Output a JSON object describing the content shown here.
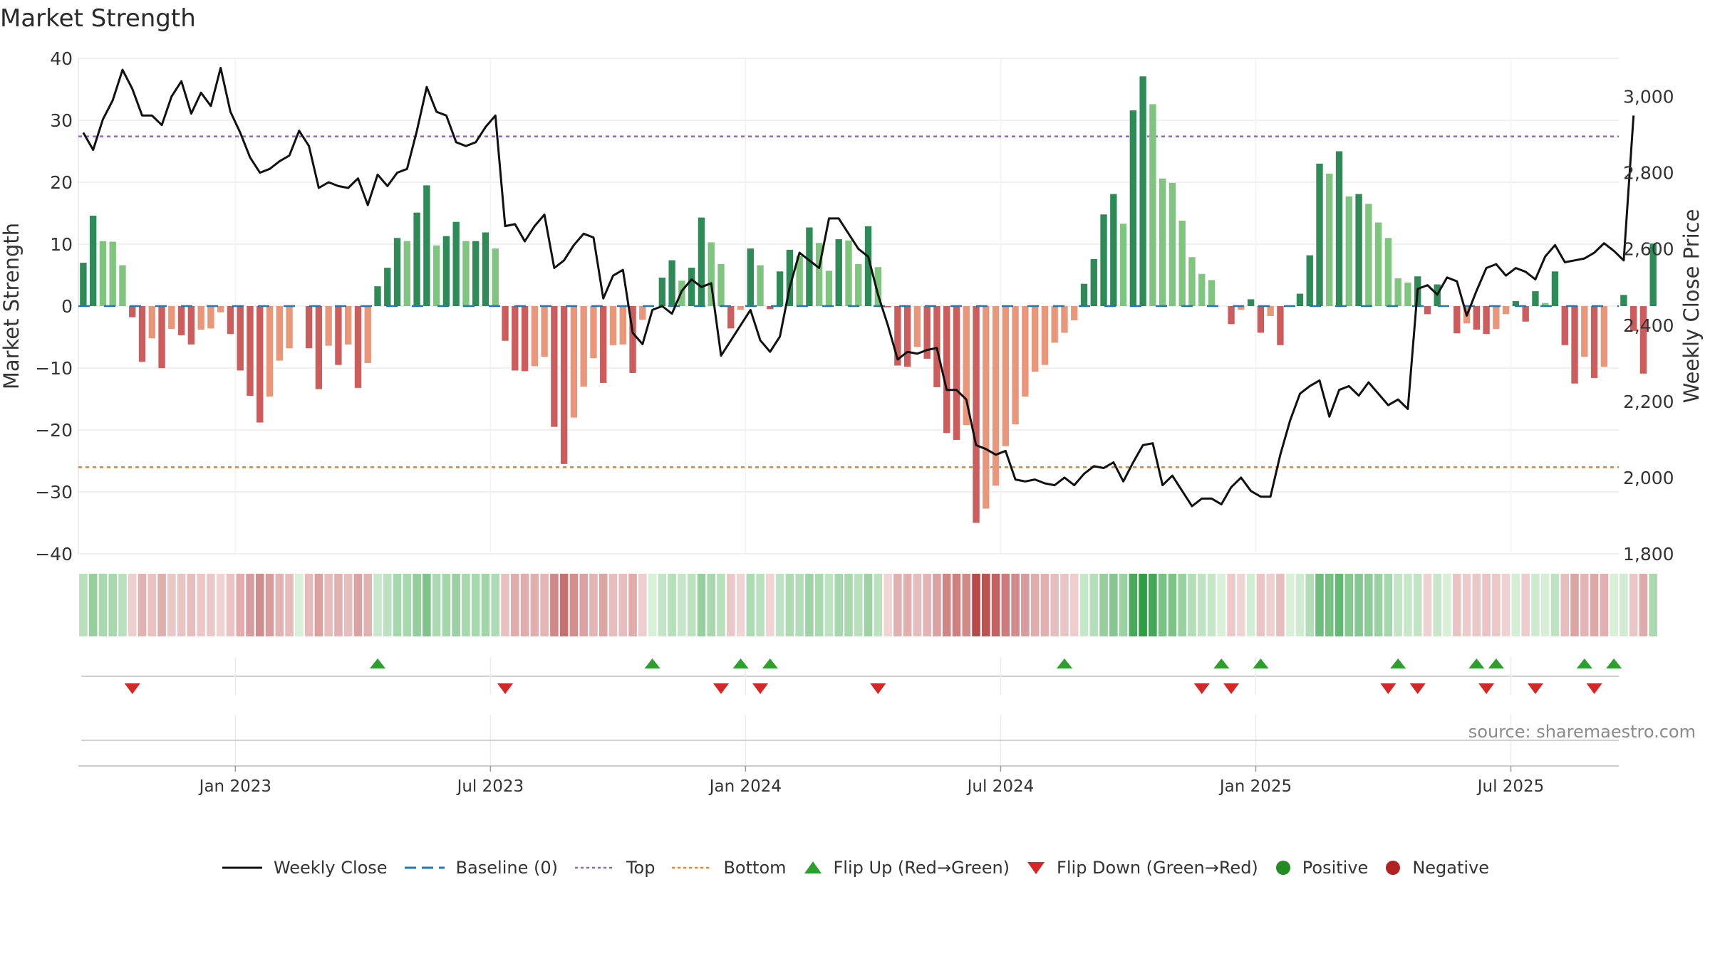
{
  "chart_data": {
    "type": "bar+line",
    "title": "Market Strength",
    "y_left_label": "Market Strength",
    "y_right_label": "Weekly Close Price",
    "y_left_range": [
      -40,
      40
    ],
    "y_right_range": [
      1800,
      3100
    ],
    "y_left_ticks": [
      "40",
      "30",
      "20",
      "10",
      "0",
      "−10",
      "−20",
      "−30",
      "−40"
    ],
    "y_right_ticks": [
      "3,000",
      "2,800",
      "2,600",
      "2,400",
      "2,200",
      "2,000",
      "1,800"
    ],
    "x_tick_labels": [
      "Jan 2023",
      "Jul 2023",
      "Jan 2024",
      "Jul 2024",
      "Jan 2025",
      "Jul 2025"
    ],
    "x_tick_index": [
      16,
      42,
      68,
      94,
      120,
      146
    ],
    "week_count": 157,
    "top_threshold": 27.4,
    "bottom_threshold": -26,
    "strength": [
      7,
      14.6,
      10.5,
      10.4,
      6.6,
      -1.8,
      -9,
      -5.2,
      -10,
      -3.7,
      -4.7,
      -6.2,
      -3.8,
      -3.6,
      -1,
      -4.5,
      -10.4,
      -14.5,
      -18.8,
      -14.6,
      -8.8,
      -6.8,
      0,
      -6.8,
      -13.4,
      -6.4,
      -9.5,
      -6.2,
      -13.2,
      -9.2,
      3.2,
      6.2,
      11,
      10.5,
      15.1,
      19.5,
      9.8,
      11.3,
      13.6,
      10.5,
      10.5,
      11.9,
      9.3,
      -5.6,
      -10.4,
      -10.5,
      -9.7,
      -8.2,
      -19.5,
      -25.5,
      -18,
      -13,
      -8.4,
      -12.4,
      -6.3,
      -6.2,
      -10.8,
      -2.2,
      0,
      4.6,
      7.4,
      4.1,
      6.2,
      14.3,
      10.3,
      6.8,
      -3.6,
      -0.6,
      9.3,
      6.6,
      -0.5,
      5.6,
      9.1,
      8.1,
      12.7,
      10.2,
      5.7,
      10.8,
      10.6,
      6.8,
      12.9,
      6.3,
      -0.2,
      -9.6,
      -9.8,
      -6.6,
      -8.5,
      -13.1,
      -20.5,
      -21.6,
      -19.2,
      -35,
      -32.7,
      -29,
      -22.6,
      -19.1,
      -14.6,
      -10.6,
      -9.5,
      -5.9,
      -4.3,
      -2.3,
      3.6,
      7.6,
      14.8,
      18.1,
      13.3,
      31.6,
      37.1,
      32.6,
      20.6,
      19.9,
      13.8,
      7.9,
      5.2,
      4.2,
      0,
      -2.9,
      -0.6,
      1.1,
      -4.3,
      -1.6,
      -6.3,
      0,
      2,
      8.2,
      23,
      21.4,
      25,
      17.7,
      18.1,
      16.5,
      13.5,
      11,
      4.5,
      3.8,
      4.8,
      -1.3,
      3.5,
      0,
      -4.4,
      -2.8,
      -3.8,
      -4.5,
      -3.7,
      -1.3,
      0.8,
      -2.5,
      2.4,
      0.5,
      5.6,
      -6.3,
      -12.5,
      -8.2,
      -11.6,
      -9.8,
      0,
      1.8,
      -4,
      -10.9,
      10.1
    ],
    "weekly_close": [
      2905,
      2860,
      2940,
      2990,
      3070,
      3020,
      2950,
      2950,
      2925,
      3000,
      3040,
      2955,
      3010,
      2975,
      3075,
      2960,
      2905,
      2840,
      2800,
      2810,
      2830,
      2845,
      2910,
      2870,
      2760,
      2775,
      2765,
      2760,
      2785,
      2715,
      2795,
      2765,
      2800,
      2810,
      2910,
      3025,
      2960,
      2950,
      2880,
      2870,
      2880,
      2920,
      2950,
      2660,
      2665,
      2620,
      2660,
      2690,
      2550,
      2570,
      2610,
      2640,
      2630,
      2470,
      2530,
      2545,
      2380,
      2350,
      2440,
      2450,
      2430,
      2490,
      2520,
      2500,
      2510,
      2320,
      2360,
      2400,
      2440,
      2360,
      2330,
      2370,
      2500,
      2590,
      2570,
      2550,
      2680,
      2680,
      2640,
      2600,
      2580,
      2480,
      2400,
      2310,
      2330,
      2325,
      2335,
      2340,
      2230,
      2230,
      2205,
      2085,
      2075,
      2060,
      2070,
      1995,
      1990,
      1995,
      1985,
      1980,
      2000,
      1980,
      2010,
      2030,
      2025,
      2040,
      1990,
      2040,
      2085,
      2090,
      1980,
      2005,
      1965,
      1925,
      1945,
      1945,
      1930,
      1975,
      2000,
      1965,
      1950,
      1950,
      2060,
      2150,
      2220,
      2240,
      2255,
      2160,
      2230,
      2240,
      2215,
      2250,
      2220,
      2190,
      2205,
      2180,
      2495,
      2505,
      2480,
      2525,
      2515,
      2425,
      2490,
      2550,
      2560,
      2530,
      2550,
      2540,
      2520,
      2580,
      2610,
      2565,
      2570,
      2575,
      2590,
      2615,
      2595,
      2570,
      2950
    ],
    "flip_up_index": [
      30,
      58,
      67,
      70,
      100,
      116,
      120,
      134,
      142,
      144,
      153,
      156
    ],
    "flip_down_index": [
      5,
      43,
      65,
      69,
      81,
      114,
      117,
      133,
      136,
      143,
      148,
      154
    ],
    "legend_entries": [
      "Weekly Close",
      "Baseline (0)",
      "Top",
      "Bottom",
      "Flip Up (Red→Green)",
      "Flip Down (Green→Red)",
      "Positive",
      "Negative"
    ]
  },
  "colors": {
    "positive_dark": "#2e8b57",
    "positive_light": "#7fc47f",
    "negative_dark": "#cd5c5c",
    "negative_light": "#e9967a",
    "line": "#111111",
    "baseline": "#1f77b4",
    "top": "#9467bd",
    "bottom": "#ff7f0e",
    "flip_up": "#2ca02c",
    "flip_down": "#d62728",
    "positive_dot": "#228b22",
    "negative_dot": "#b22222"
  },
  "source": "source: sharemaestro.com",
  "legend": {
    "weekly_close": "Weekly Close",
    "baseline": "Baseline (0)",
    "top": "Top",
    "bottom": "Bottom",
    "flip_up": "Flip Up (Red→Green)",
    "flip_down": "Flip Down (Green→Red)",
    "positive": "Positive",
    "negative": "Negative"
  }
}
